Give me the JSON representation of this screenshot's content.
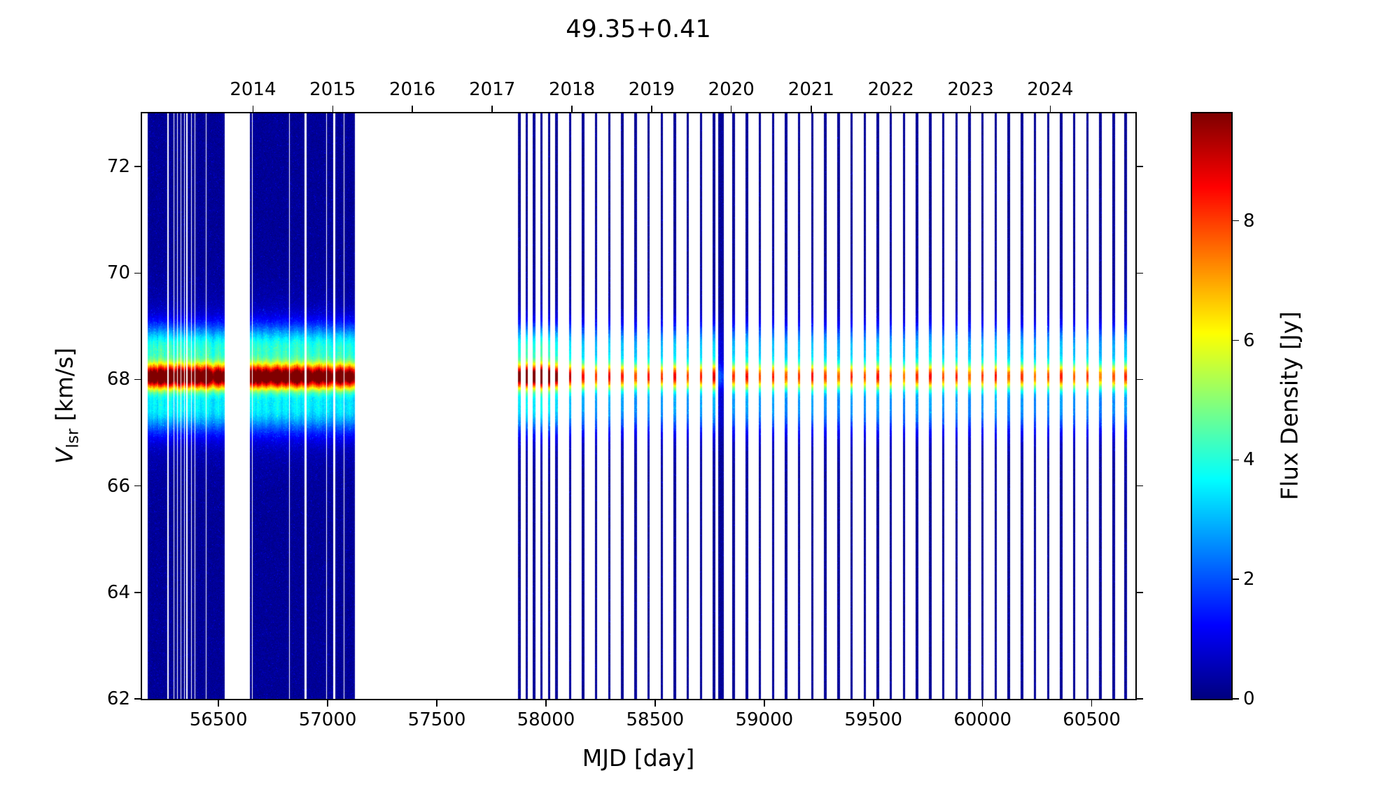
{
  "chart_data": {
    "type": "heatmap",
    "title": "49.35+0.41",
    "xlabel": "MJD [day]",
    "ylabel": {
      "var": "V",
      "sub": "lsr",
      "unit": " [km/s]"
    },
    "colorbar_label": "Flux Density [Jy]",
    "colormap": "jet",
    "xlim_mjd": [
      56150,
      60700
    ],
    "ylim_kms": [
      62,
      73
    ],
    "flux_range_jy": [
      0,
      9.8
    ],
    "x_ticks_mjd": [
      56500,
      57000,
      57500,
      58000,
      58500,
      59000,
      59500,
      60000,
      60500
    ],
    "y_ticks_kms": [
      62,
      64,
      66,
      68,
      70,
      72
    ],
    "colorbar_ticks_jy": [
      0,
      2,
      4,
      6,
      8
    ],
    "top_axis": {
      "label_type": "year",
      "years": [
        {
          "label": "2014",
          "mjd": 56658
        },
        {
          "label": "2015",
          "mjd": 57023
        },
        {
          "label": "2016",
          "mjd": 57388
        },
        {
          "label": "2017",
          "mjd": 57754
        },
        {
          "label": "2018",
          "mjd": 58119
        },
        {
          "label": "2019",
          "mjd": 58484
        },
        {
          "label": "2020",
          "mjd": 58849
        },
        {
          "label": "2021",
          "mjd": 59215
        },
        {
          "label": "2022",
          "mjd": 59580
        },
        {
          "label": "2023",
          "mjd": 59945
        },
        {
          "label": "2024",
          "mjd": 60310
        }
      ]
    },
    "spectral_profile": {
      "line_center_kms": 68.05,
      "components": [
        {
          "center_kms": 68.05,
          "sigma_kms": 0.17,
          "rel_amp": 1.0
        },
        {
          "center_kms": 68.6,
          "sigma_kms": 0.3,
          "rel_amp": 0.36
        },
        {
          "center_kms": 67.45,
          "sigma_kms": 0.32,
          "rel_amp": 0.3
        },
        {
          "center_kms": 68.0,
          "sigma_kms": 0.9,
          "rel_amp": 0.08
        }
      ],
      "noise_floor_jy": 0.45
    },
    "epochs_format": [
      "mjd",
      "peak_flux_jy"
    ],
    "epochs": [
      [
        56180,
        8.6
      ],
      [
        56188,
        9.2
      ],
      [
        56196,
        8.8
      ],
      [
        56204,
        9.5
      ],
      [
        56212,
        9.0
      ],
      [
        56220,
        8.4
      ],
      [
        56228,
        9.6
      ],
      [
        56236,
        9.9
      ],
      [
        56244,
        9.3
      ],
      [
        56252,
        8.7
      ],
      [
        56260,
        9.1
      ],
      [
        56276,
        9.7
      ],
      [
        56284,
        9.4
      ],
      [
        56292,
        8.8
      ],
      [
        56300,
        8.3
      ],
      [
        56308,
        9.0
      ],
      [
        56316,
        9.5
      ],
      [
        56324,
        9.8
      ],
      [
        56332,
        9.2
      ],
      [
        56340,
        8.6
      ],
      [
        56348,
        9.0
      ],
      [
        56364,
        9.4
      ],
      [
        56372,
        8.9
      ],
      [
        56380,
        8.4
      ],
      [
        56388,
        8.8
      ],
      [
        56396,
        9.3
      ],
      [
        56404,
        9.6
      ],
      [
        56412,
        9.1
      ],
      [
        56420,
        8.5
      ],
      [
        56428,
        8.9
      ],
      [
        56436,
        9.4
      ],
      [
        56452,
        9.7
      ],
      [
        56460,
        9.0
      ],
      [
        56468,
        8.5
      ],
      [
        56476,
        8.0
      ],
      [
        56484,
        8.6
      ],
      [
        56492,
        9.1
      ],
      [
        56500,
        9.5
      ],
      [
        56508,
        8.9
      ],
      [
        56516,
        8.3
      ],
      [
        56524,
        8.7
      ],
      [
        56650,
        9.0
      ],
      [
        56660,
        9.4
      ],
      [
        56670,
        8.8
      ],
      [
        56680,
        9.6
      ],
      [
        56690,
        9.2
      ],
      [
        56700,
        8.6
      ],
      [
        56710,
        9.1
      ],
      [
        56720,
        9.5
      ],
      [
        56730,
        8.9
      ],
      [
        56740,
        8.4
      ],
      [
        56750,
        8.8
      ],
      [
        56760,
        9.3
      ],
      [
        56770,
        9.7
      ],
      [
        56780,
        9.1
      ],
      [
        56790,
        8.5
      ],
      [
        56800,
        9.0
      ],
      [
        56810,
        9.4
      ],
      [
        56820,
        8.8
      ],
      [
        56830,
        8.3
      ],
      [
        56840,
        8.7
      ],
      [
        56850,
        9.2
      ],
      [
        56860,
        9.6
      ],
      [
        56870,
        9.0
      ],
      [
        56880,
        8.4
      ],
      [
        56890,
        8.9
      ],
      [
        56910,
        9.3
      ],
      [
        56920,
        8.7
      ],
      [
        56930,
        8.2
      ],
      [
        56940,
        8.6
      ],
      [
        56950,
        9.1
      ],
      [
        56960,
        9.5
      ],
      [
        56970,
        8.9
      ],
      [
        56980,
        8.4
      ],
      [
        56990,
        8.8
      ],
      [
        57000,
        9.2
      ],
      [
        57010,
        8.6
      ],
      [
        57020,
        8.1
      ],
      [
        57040,
        8.5
      ],
      [
        57050,
        9.0
      ],
      [
        57060,
        9.4
      ],
      [
        57070,
        8.8
      ],
      [
        57080,
        8.3
      ],
      [
        57090,
        8.7
      ],
      [
        57100,
        9.1
      ],
      [
        57110,
        8.5
      ],
      [
        57120,
        8.0
      ],
      [
        57878,
        8.6
      ],
      [
        57912,
        9.3
      ],
      [
        57946,
        8.8
      ],
      [
        57980,
        9.6
      ],
      [
        58014,
        9.0
      ],
      [
        58048,
        8.4
      ],
      [
        58110,
        7.6
      ],
      [
        58170,
        7.0
      ],
      [
        58230,
        6.6
      ],
      [
        58290,
        7.2
      ],
      [
        58350,
        6.8
      ],
      [
        58410,
        6.3
      ],
      [
        58470,
        6.9
      ],
      [
        58530,
        6.5
      ],
      [
        58590,
        7.1
      ],
      [
        58650,
        6.4
      ],
      [
        58710,
        6.8
      ],
      [
        58770,
        7.3
      ],
      [
        58796,
        1.6
      ],
      [
        58808,
        1.4
      ],
      [
        58860,
        6.6
      ],
      [
        58920,
        7.0
      ],
      [
        58980,
        6.4
      ],
      [
        59040,
        6.8
      ],
      [
        59100,
        6.2
      ],
      [
        59160,
        6.6
      ],
      [
        59220,
        7.0
      ],
      [
        59280,
        6.5
      ],
      [
        59340,
        6.1
      ],
      [
        59400,
        6.7
      ],
      [
        59460,
        6.3
      ],
      [
        59520,
        6.9
      ],
      [
        59580,
        6.4
      ],
      [
        59640,
        6.0
      ],
      [
        59700,
        6.6
      ],
      [
        59760,
        7.0
      ],
      [
        59820,
        6.3
      ],
      [
        59880,
        6.7
      ],
      [
        59940,
        6.1
      ],
      [
        60000,
        6.5
      ],
      [
        60060,
        6.9
      ],
      [
        60120,
        6.2
      ],
      [
        60180,
        6.6
      ],
      [
        60240,
        6.0
      ],
      [
        60300,
        6.4
      ],
      [
        60360,
        6.8
      ],
      [
        60420,
        6.2
      ],
      [
        60480,
        6.6
      ],
      [
        60540,
        5.9
      ],
      [
        60600,
        6.3
      ],
      [
        60655,
        6.7
      ]
    ]
  }
}
